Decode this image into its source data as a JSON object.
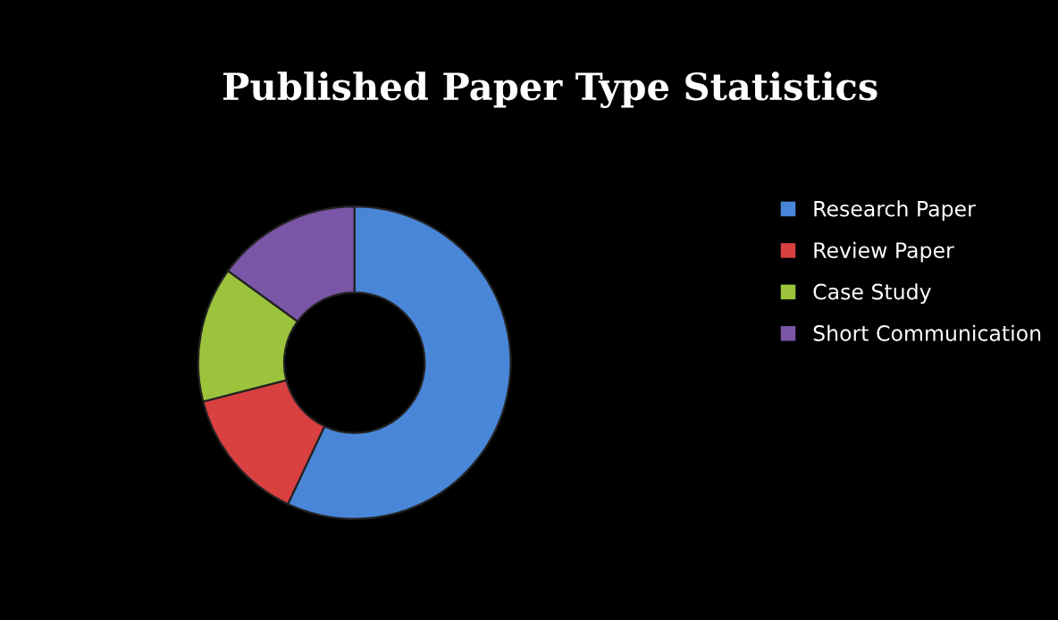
{
  "chart_data": {
    "type": "donut",
    "title": "Published Paper Type Statistics",
    "categories": [
      "Research Paper",
      "Review Paper",
      "Case Study",
      "Short Communication"
    ],
    "values": [
      57,
      14,
      14,
      15
    ],
    "colors": [
      "#4a86d8",
      "#d94040",
      "#9bc43c",
      "#7a56a6"
    ],
    "legend": "right"
  }
}
